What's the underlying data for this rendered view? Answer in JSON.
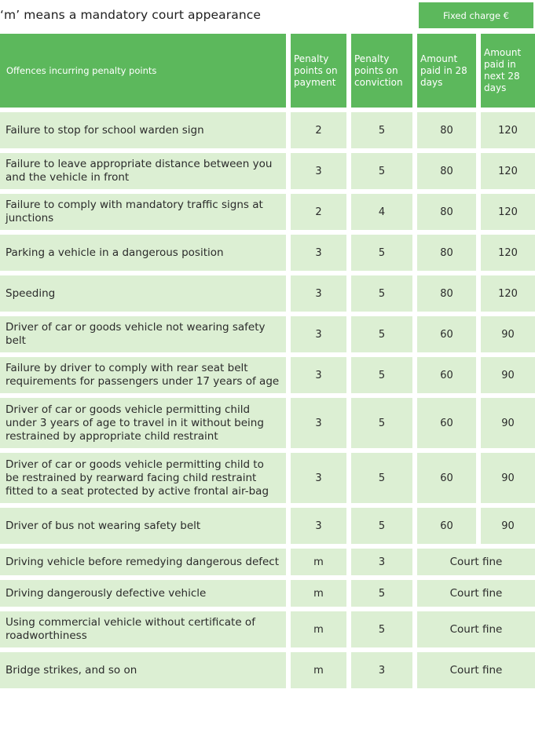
{
  "note": "‘m’ means a mandatory court appearance",
  "fixed_charge_label": "Fixed charge €",
  "headers": {
    "offence": "Offences incurring penalty points",
    "points_payment": "Penalty points on payment",
    "points_conviction": "Penalty points on conviction",
    "amount_28": "Amount paid in 28 days",
    "amount_next_28": "Amount paid in next 28 days"
  },
  "rows": [
    {
      "offence": "Failure to stop for school warden sign",
      "payment": "2",
      "conviction": "5",
      "amount28": "80",
      "amountNext": "120"
    },
    {
      "offence": "Failure to leave appropriate distance between you and the vehicle in front",
      "payment": "3",
      "conviction": "5",
      "amount28": "80",
      "amountNext": "120"
    },
    {
      "offence": "Failure to comply with mandatory traffic signs at junctions",
      "payment": "2",
      "conviction": "4",
      "amount28": "80",
      "amountNext": "120"
    },
    {
      "offence": "Parking a vehicle in a dangerous position",
      "payment": "3",
      "conviction": "5",
      "amount28": "80",
      "amountNext": "120"
    },
    {
      "offence": "Speeding",
      "payment": "3",
      "conviction": "5",
      "amount28": "80",
      "amountNext": "120"
    },
    {
      "offence": "Driver of car or goods vehicle not wearing safety belt",
      "payment": "3",
      "conviction": "5",
      "amount28": "60",
      "amountNext": "90"
    },
    {
      "offence": "Failure by driver to comply with rear seat belt requirements for passengers under 17 years of age",
      "payment": "3",
      "conviction": "5",
      "amount28": "60",
      "amountNext": "90"
    },
    {
      "offence": "Driver of car or goods vehicle permitting child under 3 years of age to travel in it without being restrained by appropriate child restraint",
      "payment": "3",
      "conviction": "5",
      "amount28": "60",
      "amountNext": "90"
    },
    {
      "offence": "Driver of car or goods vehicle permitting child to be restrained by rearward facing child restraint fitted to a seat protected by active frontal air-bag",
      "payment": "3",
      "conviction": "5",
      "amount28": "60",
      "amountNext": "90"
    },
    {
      "offence": "Driver of bus not wearing safety belt",
      "payment": "3",
      "conviction": "5",
      "amount28": "60",
      "amountNext": "90"
    },
    {
      "offence": "Driving vehicle before remedying dangerous defect",
      "payment": "m",
      "conviction": "3",
      "court": "Court fine"
    },
    {
      "offence": "Driving dangerously defective vehicle",
      "payment": "m",
      "conviction": "5",
      "court": "Court fine"
    },
    {
      "offence": "Using commercial  vehicle without certificate of roadworthiness",
      "payment": "m",
      "conviction": "5",
      "court": "Court fine"
    },
    {
      "offence": "Bridge strikes, and so on",
      "payment": "m",
      "conviction": "3",
      "court": "Court fine"
    }
  ]
}
